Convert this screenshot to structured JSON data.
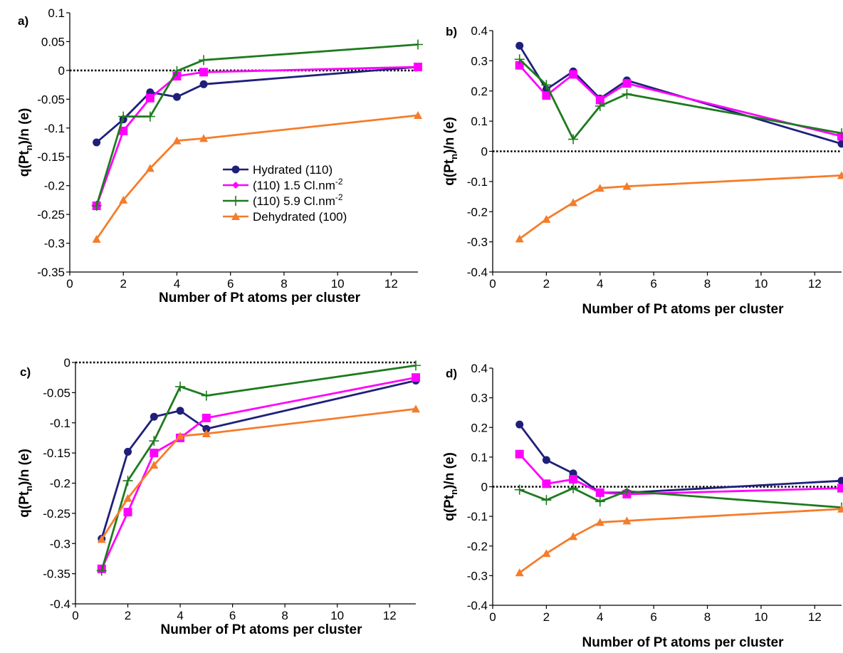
{
  "chart_data": [
    {
      "type": "line",
      "panel_label": "a)",
      "xlabel": "Number of Pt atoms per cluster",
      "ylabel": "q(Pt",
      "ylabel_sub": "n",
      "ylabel_tail": ")/n (e)",
      "xlim": [
        0,
        13
      ],
      "ylim": [
        -0.35,
        0.1
      ],
      "xticks": [
        "0",
        "2",
        "4",
        "6",
        "8",
        "10",
        "12"
      ],
      "yticks": [
        "0.1",
        "0.05",
        "0",
        "-0.05",
        "-0.1",
        "-0.15",
        "-0.2",
        "-0.25",
        "-0.3",
        "-0.35"
      ],
      "legend_position": "center-right",
      "x": [
        1,
        2,
        3,
        4,
        5,
        13
      ],
      "series": [
        {
          "name": "Hydrated (110)",
          "values": [
            -0.125,
            -0.085,
            -0.038,
            -0.046,
            -0.024,
            0.006
          ]
        },
        {
          "name": "(110) 1.5 Cl.nm",
          "name_sup": "-2",
          "values": [
            -0.235,
            -0.105,
            -0.048,
            -0.01,
            -0.003,
            0.006
          ]
        },
        {
          "name": "(110) 5.9 Cl.nm",
          "name_sup": "-2",
          "values": [
            -0.235,
            -0.08,
            -0.08,
            -0.001,
            0.018,
            0.045
          ]
        },
        {
          "name": "Dehydrated (100)",
          "values": [
            -0.293,
            -0.225,
            -0.17,
            -0.122,
            -0.118,
            -0.078
          ]
        }
      ]
    },
    {
      "type": "line",
      "panel_label": "b)",
      "xlabel": "Number of Pt atoms per cluster",
      "ylabel": "q(Pt",
      "ylabel_sub": "n",
      "ylabel_tail": ")/n (e)",
      "xlim": [
        0,
        13
      ],
      "ylim": [
        -0.4,
        0.4
      ],
      "xticks": [
        "0",
        "2",
        "4",
        "6",
        "8",
        "10",
        "12"
      ],
      "yticks": [
        "0.4",
        "0.3",
        "0.2",
        "0.1",
        "0",
        "-0.1",
        "-0.2",
        "-0.3",
        "-0.4"
      ],
      "x": [
        1,
        2,
        3,
        4,
        5,
        13
      ],
      "series": [
        {
          "values": [
            0.35,
            0.205,
            0.265,
            0.175,
            0.235,
            0.025
          ]
        },
        {
          "values": [
            0.285,
            0.185,
            0.255,
            0.17,
            0.225,
            0.05
          ]
        },
        {
          "values": [
            0.305,
            0.22,
            0.04,
            0.15,
            0.19,
            0.06
          ]
        },
        {
          "values": [
            -0.29,
            -0.225,
            -0.17,
            -0.122,
            -0.116,
            -0.08
          ]
        }
      ]
    },
    {
      "type": "line",
      "panel_label": "c)",
      "xlabel": "Number of Pt atoms per cluster",
      "ylabel": "q(Pt",
      "ylabel_sub": "n",
      "ylabel_tail": ")/n (e)",
      "xlim": [
        0,
        13
      ],
      "ylim": [
        -0.4,
        0
      ],
      "xticks": [
        "0",
        "2",
        "4",
        "6",
        "8",
        "10",
        "12"
      ],
      "yticks": [
        "0",
        "-0.05",
        "-0.1",
        "-0.15",
        "-0.2",
        "-0.25",
        "-0.3",
        "-0.35",
        "-0.4"
      ],
      "x": [
        1,
        2,
        3,
        4,
        5,
        13
      ],
      "series": [
        {
          "values": [
            -0.292,
            -0.148,
            -0.09,
            -0.08,
            -0.11,
            -0.03
          ]
        },
        {
          "values": [
            -0.342,
            -0.248,
            -0.15,
            -0.125,
            -0.092,
            -0.025
          ]
        },
        {
          "values": [
            -0.345,
            -0.196,
            -0.13,
            -0.04,
            -0.055,
            -0.005
          ]
        },
        {
          "values": [
            -0.293,
            -0.225,
            -0.17,
            -0.122,
            -0.118,
            -0.077
          ]
        }
      ]
    },
    {
      "type": "line",
      "panel_label": "d)",
      "xlabel": "Number of Pt atoms per cluster",
      "ylabel": "q(Pt",
      "ylabel_sub": "n",
      "ylabel_tail": ")/n (e)",
      "xlim": [
        0,
        13
      ],
      "ylim": [
        -0.4,
        0.4
      ],
      "xticks": [
        "0",
        "2",
        "4",
        "6",
        "8",
        "10",
        "12"
      ],
      "yticks": [
        "0.4",
        "0.3",
        "0.2",
        "0.1",
        "0",
        "-0.1",
        "-0.2",
        "-0.3",
        "-0.4"
      ],
      "x": [
        1,
        2,
        3,
        4,
        5,
        13
      ],
      "series": [
        {
          "values": [
            0.21,
            0.09,
            0.045,
            -0.02,
            -0.02,
            0.02
          ]
        },
        {
          "values": [
            0.11,
            0.01,
            0.025,
            -0.02,
            -0.025,
            -0.005
          ]
        },
        {
          "values": [
            -0.01,
            -0.045,
            -0.005,
            -0.05,
            -0.015,
            -0.07
          ]
        },
        {
          "values": [
            -0.29,
            -0.225,
            -0.168,
            -0.12,
            -0.115,
            -0.075
          ]
        }
      ]
    }
  ],
  "series_style": {
    "colors": [
      "#1f1f7a",
      "#ff00ff",
      "#1e7a1e",
      "#f57c2a"
    ],
    "markers": [
      "circle",
      "square",
      "plus",
      "triangle"
    ],
    "legend_markers": [
      "circle",
      "diamond",
      "plus",
      "triangle"
    ]
  }
}
